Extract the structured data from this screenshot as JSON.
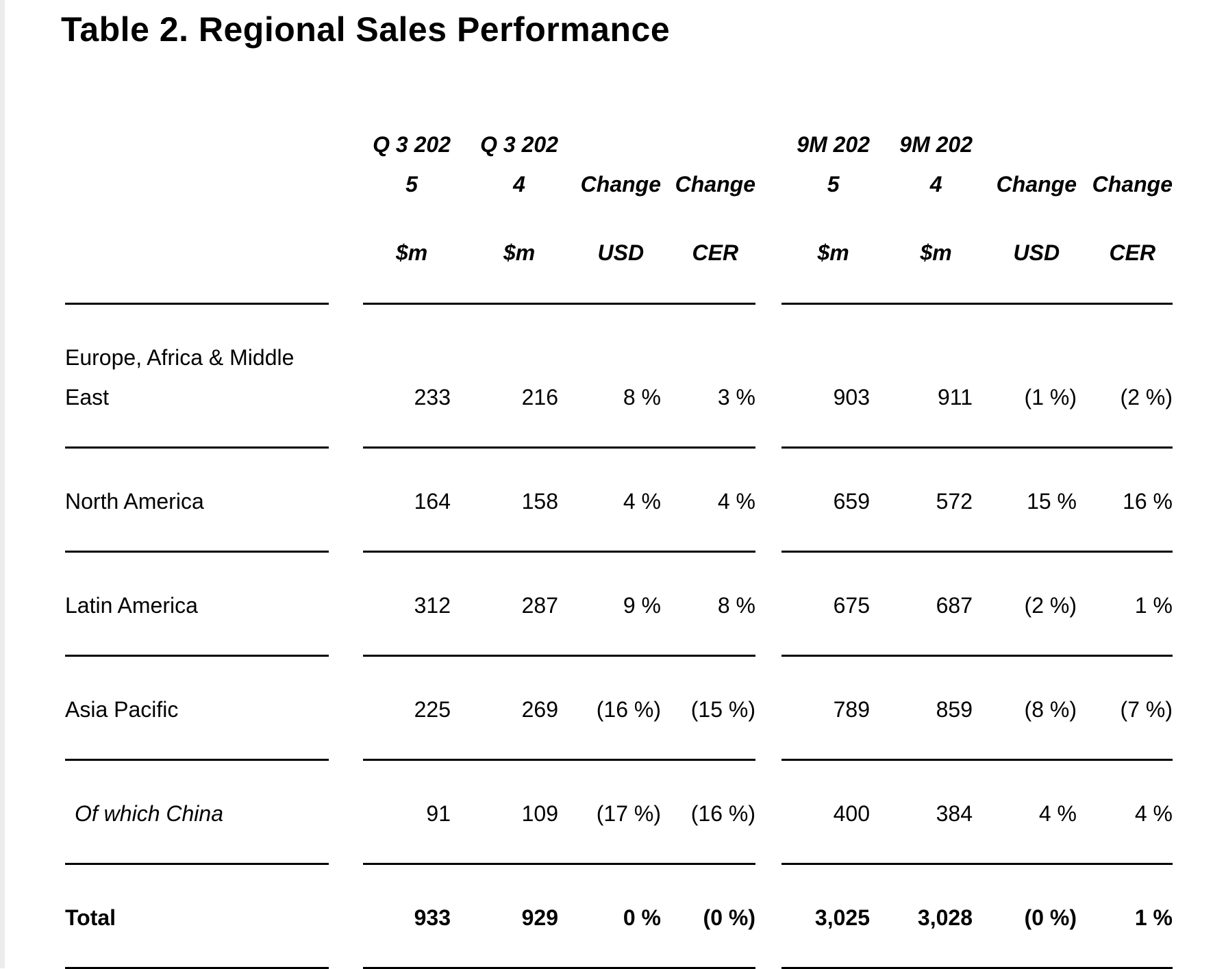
{
  "page": {
    "title": "Table 2. Regional Sales Performance"
  },
  "table": {
    "headers": [
      {
        "line1": "Q 3 202",
        "line2": "5",
        "line3": "$m"
      },
      {
        "line1": "Q 3 202",
        "line2": "4",
        "line3": "$m"
      },
      {
        "line1": "",
        "line2": "Change",
        "line3": "USD"
      },
      {
        "line1": "",
        "line2": "Change",
        "line3": "CER"
      },
      {
        "line1": "9M 202",
        "line2": "5",
        "line3": "$m"
      },
      {
        "line1": "9M 202",
        "line2": "4",
        "line3": "$m"
      },
      {
        "line1": "",
        "line2": "Change",
        "line3": "USD"
      },
      {
        "line1": "",
        "line2": "Change",
        "line3": "CER"
      }
    ],
    "rows": [
      {
        "label": "Europe, Africa & Middle East",
        "values": [
          "233",
          "216",
          "8 %",
          "3 %",
          "903",
          "911",
          "(1 %)",
          "(2 %)"
        ]
      },
      {
        "label": "North America",
        "values": [
          "164",
          "158",
          "4 %",
          "4 %",
          "659",
          "572",
          "15 %",
          "16 %"
        ]
      },
      {
        "label": "Latin America",
        "values": [
          "312",
          "287",
          "9 %",
          "8 %",
          "675",
          "687",
          "(2 %)",
          "1 %"
        ]
      },
      {
        "label": "Asia Pacific",
        "values": [
          "225",
          "269",
          "(16 %)",
          "(15 %)",
          "789",
          "859",
          "(8 %)",
          "(7 %)"
        ]
      },
      {
        "label": "Of which China",
        "values": [
          "91",
          "109",
          "(17 %)",
          "(16 %)",
          "400",
          "384",
          "4 %",
          "4 %"
        ]
      },
      {
        "label": "Total",
        "values": [
          "933",
          "929",
          "0 %",
          "(0 %)",
          "3,025",
          "3,028",
          "(0 %)",
          "1 %"
        ]
      }
    ]
  }
}
